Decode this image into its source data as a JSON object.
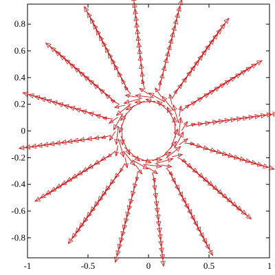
{
  "chart_data": {
    "type": "vector-field",
    "title": "",
    "xlabel": "",
    "ylabel": "",
    "xlim": [
      -1,
      1
    ],
    "ylim": [
      -0.95,
      0.95
    ],
    "grid": false,
    "legend": "none",
    "arrow_color": "#cc2222",
    "x_ticks": [
      -1,
      -0.5,
      0,
      0.5,
      1
    ],
    "x_tick_labels": [
      "-1",
      "-0.5",
      "0",
      "0.5",
      "1"
    ],
    "y_ticks": [
      -0.8,
      -0.6,
      -0.4,
      -0.2,
      0,
      0.2,
      0.4,
      0.6,
      0.8
    ],
    "y_tick_labels": [
      "-0.8",
      "-0.6",
      "-0.4",
      "-0.2",
      "0",
      "0.2",
      "0.4",
      "0.6",
      "0.8"
    ],
    "field": {
      "spokes": 16,
      "spoke_angle_offset_deg": 7,
      "radii": [
        0.22,
        0.26,
        0.3,
        0.35,
        0.4,
        0.45,
        0.5,
        0.55,
        0.6,
        0.65,
        0.7,
        0.75,
        0.8,
        0.85,
        0.9,
        0.95,
        1.0
      ],
      "ring_center_radius": 0.2,
      "ring_swirl": "counter-clockwise"
    }
  }
}
